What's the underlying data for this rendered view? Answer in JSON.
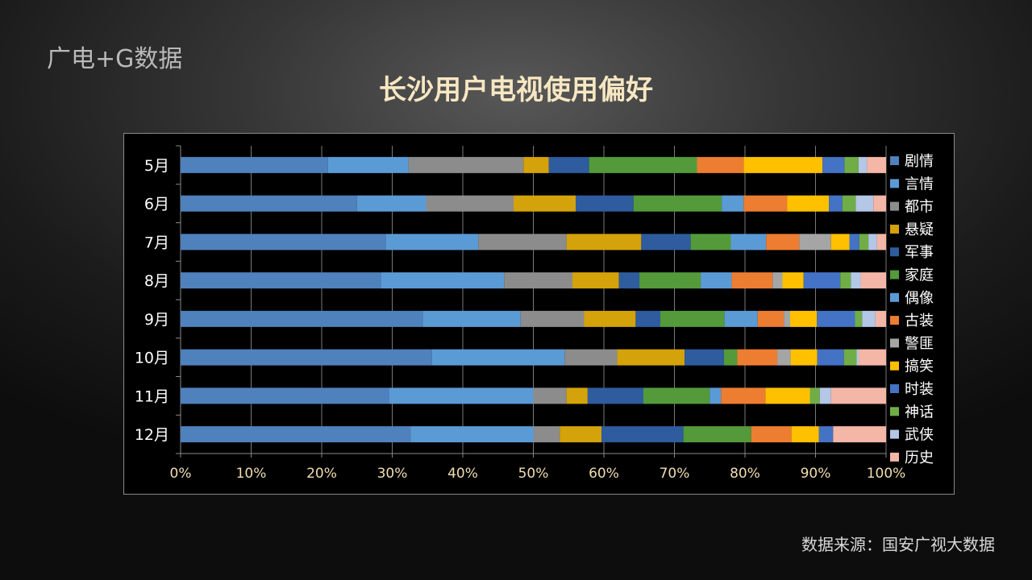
{
  "header": {
    "brand": "广电+G数据",
    "title": "长沙用户电视使用偏好"
  },
  "footer": {
    "source": "数据来源：国安广视大数据"
  },
  "chart_data": {
    "type": "bar",
    "orientation": "horizontal",
    "stacked": "percent",
    "categories": [
      "5月",
      "6月",
      "7月",
      "8月",
      "9月",
      "10月",
      "11月",
      "12月"
    ],
    "xlim": [
      0,
      100
    ],
    "x_ticks": [
      "0%",
      "10%",
      "20%",
      "30%",
      "40%",
      "50%",
      "60%",
      "70%",
      "80%",
      "90%",
      "100%"
    ],
    "grid": true,
    "legend_position": "right",
    "series": [
      {
        "name": "剧情",
        "color": "#4f81bd",
        "values": [
          20.9,
          25.0,
          29.1,
          28.4,
          34.4,
          35.8,
          29.6,
          32.6
        ]
      },
      {
        "name": "言情",
        "color": "#5b9bd5",
        "values": [
          11.4,
          9.8,
          13.1,
          17.5,
          13.8,
          18.9,
          20.4,
          17.4
        ]
      },
      {
        "name": "都市",
        "color": "#8c8c8c",
        "values": [
          16.3,
          12.4,
          12.5,
          9.7,
          9.0,
          7.5,
          4.7,
          3.7
        ]
      },
      {
        "name": "悬疑",
        "color": "#d4a20a",
        "values": [
          3.6,
          8.8,
          10.6,
          6.6,
          7.3,
          9.6,
          3.0,
          5.9
        ]
      },
      {
        "name": "军事",
        "color": "#2e5c9e",
        "values": [
          5.7,
          8.2,
          7.0,
          2.9,
          3.5,
          5.6,
          7.9,
          11.6
        ]
      },
      {
        "name": "家庭",
        "color": "#549a3a",
        "values": [
          15.3,
          12.5,
          5.7,
          8.7,
          9.1,
          1.9,
          9.4,
          9.6
        ]
      },
      {
        "name": "偶像",
        "color": "#5b9bd5",
        "values": [
          0,
          3.1,
          5.0,
          4.4,
          4.7,
          0,
          1.6,
          0
        ]
      },
      {
        "name": "古装",
        "color": "#ed7d31",
        "values": [
          6.6,
          6.2,
          4.7,
          5.8,
          3.7,
          5.7,
          6.3,
          5.7
        ]
      },
      {
        "name": "警匪",
        "color": "#a5a5a5",
        "values": [
          0,
          0,
          4.5,
          1.4,
          0.9,
          1.9,
          0,
          0
        ]
      },
      {
        "name": "搞笑",
        "color": "#ffc000",
        "values": [
          11.2,
          5.9,
          2.6,
          3.0,
          3.8,
          3.8,
          6.3,
          3.9
        ]
      },
      {
        "name": "时装",
        "color": "#4472c4",
        "values": [
          3.1,
          1.9,
          1.4,
          5.2,
          5.4,
          3.8,
          0,
          2.0
        ]
      },
      {
        "name": "神话",
        "color": "#70ad47",
        "values": [
          2.0,
          1.9,
          1.3,
          1.5,
          1.0,
          1.8,
          1.4,
          0
        ]
      },
      {
        "name": "武侠",
        "color": "#b4c7e7",
        "values": [
          1.2,
          2.5,
          1.2,
          1.4,
          1.9,
          0.3,
          1.6,
          0
        ]
      },
      {
        "name": "历史",
        "color": "#f4b6a6",
        "values": [
          2.7,
          1.8,
          1.3,
          3.6,
          1.5,
          3.9,
          7.8,
          7.5
        ]
      }
    ]
  }
}
